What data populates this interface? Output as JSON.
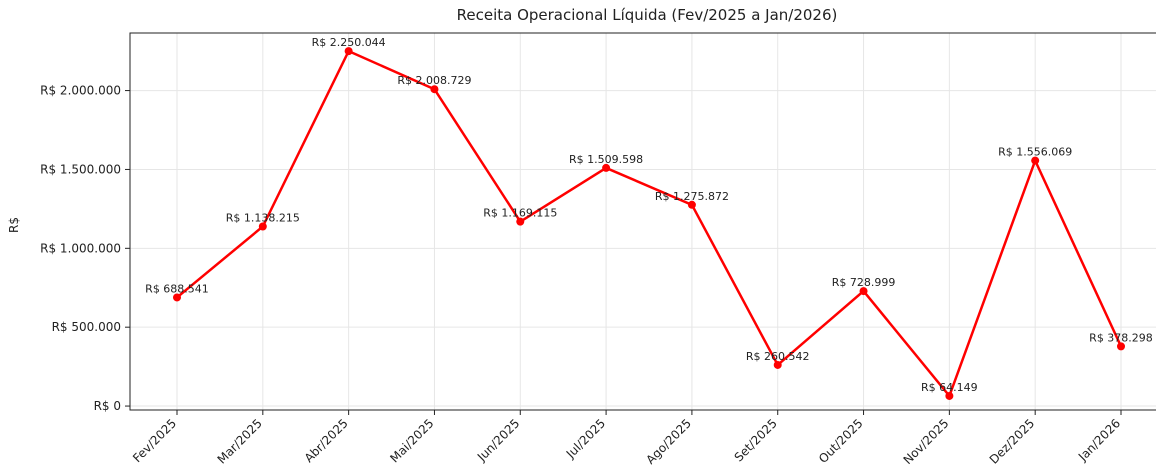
{
  "chart_data": {
    "type": "line",
    "title": "Receita Operacional Líquida (Fev/2025 a Jan/2026)",
    "y_label": "R$",
    "categories": [
      "Fev/2025",
      "Mar/2025",
      "Abr/2025",
      "Mai/2025",
      "Jun/2025",
      "Jul/2025",
      "Ago/2025",
      "Set/2025",
      "Out/2025",
      "Nov/2025",
      "Dez/2025",
      "Jan/2026"
    ],
    "series": [
      {
        "name": "Receita",
        "color": "#ff0000",
        "values": [
          688541,
          1138215,
          2250044,
          2008729,
          1169115,
          1509598,
          1275872,
          260542,
          728999,
          64149,
          1556069,
          378298
        ],
        "value_labels": [
          "R$ 688.541",
          "R$ 1.138.215",
          "R$ 2.250.044",
          "R$ 2.008.729",
          "R$ 1.169.115",
          "R$ 1.509.598",
          "R$ 1.275.872",
          "R$ 260.542",
          "R$ 728.999",
          "R$ 64.149",
          "R$ 1.556.069",
          "R$ 378.298"
        ]
      }
    ],
    "ylim": [
      -25000,
      2365000
    ],
    "yticks": [
      {
        "value": 0,
        "label": "R$ 0"
      },
      {
        "value": 500000,
        "label": "R$ 500.000"
      },
      {
        "value": 1000000,
        "label": "R$ 1.000.000"
      },
      {
        "value": 1500000,
        "label": "R$ 1.500.000"
      },
      {
        "value": 2000000,
        "label": "R$ 2.000.000"
      }
    ],
    "grid": true
  }
}
